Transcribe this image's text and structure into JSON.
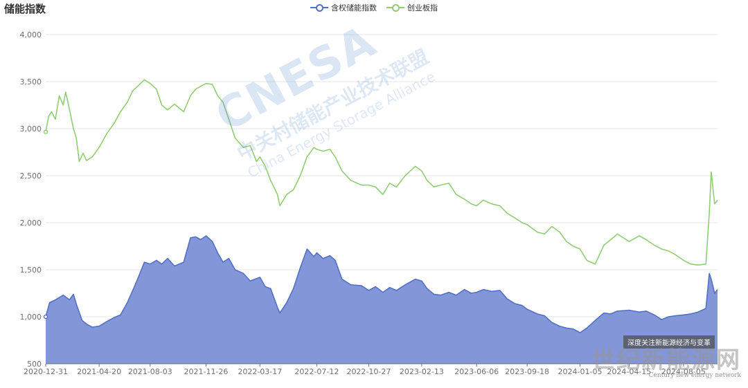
{
  "chart_data": {
    "type": "area",
    "title": "储能指数",
    "xlabel": "",
    "ylabel": "",
    "ylim": [
      500,
      4000
    ],
    "yticks": [
      500,
      1000,
      1500,
      2000,
      2500,
      3000,
      3500,
      4000
    ],
    "ytick_labels": [
      "500",
      "1,000",
      "1,500",
      "2,000",
      "2,500",
      "3,000",
      "3,500",
      "4,000"
    ],
    "xticks": [
      "2020-12-31",
      "2021-04-20",
      "2021-08-03",
      "2021-11-26",
      "2022-03-17",
      "2022-07-12",
      "2022-10-27",
      "2023-02-13",
      "2023-06-06",
      "2023-09-18",
      "2024-01-05",
      "2024-04-15",
      "2024-08-05"
    ],
    "xlim": [
      "2020-12-31",
      "2024-10-14"
    ],
    "grid": true,
    "legend_position": "top-center",
    "series": [
      {
        "name": "含权储能指数",
        "color": "#5470c6",
        "fill": "#7c90d6",
        "style": "area",
        "points": [
          [
            "2020-12-31",
            1000
          ],
          [
            "2021-01-08",
            1150
          ],
          [
            "2021-01-20",
            1180
          ],
          [
            "2021-02-05",
            1230
          ],
          [
            "2021-02-18",
            1180
          ],
          [
            "2021-02-26",
            1240
          ],
          [
            "2021-03-05",
            1120
          ],
          [
            "2021-03-16",
            960
          ],
          [
            "2021-03-26",
            920
          ],
          [
            "2021-04-06",
            890
          ],
          [
            "2021-04-20",
            900
          ],
          [
            "2021-05-06",
            950
          ],
          [
            "2021-05-20",
            990
          ],
          [
            "2021-06-03",
            1020
          ],
          [
            "2021-06-17",
            1150
          ],
          [
            "2021-06-30",
            1300
          ],
          [
            "2021-07-12",
            1450
          ],
          [
            "2021-07-22",
            1580
          ],
          [
            "2021-08-03",
            1560
          ],
          [
            "2021-08-16",
            1600
          ],
          [
            "2021-08-27",
            1560
          ],
          [
            "2021-09-08",
            1620
          ],
          [
            "2021-09-22",
            1540
          ],
          [
            "2021-10-11",
            1580
          ],
          [
            "2021-10-25",
            1840
          ],
          [
            "2021-11-05",
            1850
          ],
          [
            "2021-11-15",
            1820
          ],
          [
            "2021-11-26",
            1860
          ],
          [
            "2021-12-09",
            1800
          ],
          [
            "2021-12-20",
            1680
          ],
          [
            "2021-12-31",
            1580
          ],
          [
            "2022-01-12",
            1620
          ],
          [
            "2022-01-25",
            1500
          ],
          [
            "2022-02-11",
            1460
          ],
          [
            "2022-02-25",
            1380
          ],
          [
            "2022-03-17",
            1420
          ],
          [
            "2022-03-28",
            1320
          ],
          [
            "2022-04-08",
            1300
          ],
          [
            "2022-04-22",
            1100
          ],
          [
            "2022-04-27",
            1040
          ],
          [
            "2022-05-11",
            1150
          ],
          [
            "2022-05-25",
            1300
          ],
          [
            "2022-06-08",
            1520
          ],
          [
            "2022-06-22",
            1720
          ],
          [
            "2022-07-06",
            1640
          ],
          [
            "2022-07-12",
            1680
          ],
          [
            "2022-07-25",
            1620
          ],
          [
            "2022-08-08",
            1650
          ],
          [
            "2022-08-19",
            1600
          ],
          [
            "2022-09-02",
            1400
          ],
          [
            "2022-09-20",
            1340
          ],
          [
            "2022-10-12",
            1330
          ],
          [
            "2022-10-27",
            1280
          ],
          [
            "2022-11-10",
            1320
          ],
          [
            "2022-11-25",
            1260
          ],
          [
            "2022-12-09",
            1310
          ],
          [
            "2022-12-23",
            1280
          ],
          [
            "2023-01-10",
            1340
          ],
          [
            "2023-01-31",
            1400
          ],
          [
            "2023-02-13",
            1380
          ],
          [
            "2023-02-24",
            1300
          ],
          [
            "2023-03-10",
            1240
          ],
          [
            "2023-03-24",
            1230
          ],
          [
            "2023-04-10",
            1260
          ],
          [
            "2023-04-25",
            1230
          ],
          [
            "2023-05-12",
            1290
          ],
          [
            "2023-05-26",
            1250
          ],
          [
            "2023-06-06",
            1260
          ],
          [
            "2023-06-20",
            1290
          ],
          [
            "2023-07-07",
            1270
          ],
          [
            "2023-07-24",
            1280
          ],
          [
            "2023-08-08",
            1190
          ],
          [
            "2023-08-24",
            1140
          ],
          [
            "2023-09-08",
            1120
          ],
          [
            "2023-09-18",
            1080
          ],
          [
            "2023-10-09",
            1030
          ],
          [
            "2023-10-24",
            1010
          ],
          [
            "2023-11-08",
            940
          ],
          [
            "2023-11-24",
            900
          ],
          [
            "2023-12-08",
            880
          ],
          [
            "2023-12-22",
            870
          ],
          [
            "2024-01-05",
            830
          ],
          [
            "2024-01-19",
            880
          ],
          [
            "2024-02-05",
            960
          ],
          [
            "2024-02-23",
            1040
          ],
          [
            "2024-03-08",
            1030
          ],
          [
            "2024-03-22",
            1060
          ],
          [
            "2024-04-15",
            1070
          ],
          [
            "2024-05-06",
            1050
          ],
          [
            "2024-05-20",
            1060
          ],
          [
            "2024-06-06",
            1020
          ],
          [
            "2024-06-21",
            970
          ],
          [
            "2024-07-05",
            1000
          ],
          [
            "2024-07-19",
            1010
          ],
          [
            "2024-08-05",
            1020
          ],
          [
            "2024-08-20",
            1030
          ],
          [
            "2024-09-04",
            1050
          ],
          [
            "2024-09-20",
            1090
          ],
          [
            "2024-09-27",
            1460
          ],
          [
            "2024-10-01",
            1400
          ],
          [
            "2024-10-08",
            1250
          ],
          [
            "2024-10-14",
            1290
          ]
        ]
      },
      {
        "name": "创业板指",
        "color": "#91cc75",
        "style": "line",
        "points": [
          [
            "2020-12-31",
            2966
          ],
          [
            "2021-01-06",
            3130
          ],
          [
            "2021-01-12",
            3180
          ],
          [
            "2021-01-20",
            3100
          ],
          [
            "2021-01-28",
            3350
          ],
          [
            "2021-02-05",
            3250
          ],
          [
            "2021-02-10",
            3390
          ],
          [
            "2021-02-18",
            3200
          ],
          [
            "2021-02-26",
            3000
          ],
          [
            "2021-03-04",
            2900
          ],
          [
            "2021-03-10",
            2650
          ],
          [
            "2021-03-18",
            2740
          ],
          [
            "2021-03-25",
            2660
          ],
          [
            "2021-04-06",
            2700
          ],
          [
            "2021-04-20",
            2800
          ],
          [
            "2021-05-06",
            2950
          ],
          [
            "2021-05-20",
            3050
          ],
          [
            "2021-06-03",
            3180
          ],
          [
            "2021-06-17",
            3280
          ],
          [
            "2021-06-28",
            3400
          ],
          [
            "2021-07-08",
            3450
          ],
          [
            "2021-07-22",
            3520
          ],
          [
            "2021-08-03",
            3480
          ],
          [
            "2021-08-16",
            3420
          ],
          [
            "2021-08-27",
            3250
          ],
          [
            "2021-09-08",
            3200
          ],
          [
            "2021-09-22",
            3260
          ],
          [
            "2021-10-11",
            3180
          ],
          [
            "2021-10-25",
            3350
          ],
          [
            "2021-11-05",
            3420
          ],
          [
            "2021-11-15",
            3450
          ],
          [
            "2021-11-26",
            3480
          ],
          [
            "2021-12-09",
            3470
          ],
          [
            "2021-12-20",
            3350
          ],
          [
            "2021-12-31",
            3280
          ],
          [
            "2022-01-12",
            3100
          ],
          [
            "2022-01-25",
            2900
          ],
          [
            "2022-02-11",
            2800
          ],
          [
            "2022-02-25",
            2820
          ],
          [
            "2022-03-10",
            2650
          ],
          [
            "2022-03-17",
            2700
          ],
          [
            "2022-03-28",
            2600
          ],
          [
            "2022-04-08",
            2450
          ],
          [
            "2022-04-22",
            2300
          ],
          [
            "2022-04-27",
            2180
          ],
          [
            "2022-05-11",
            2300
          ],
          [
            "2022-05-25",
            2350
          ],
          [
            "2022-06-08",
            2500
          ],
          [
            "2022-06-22",
            2700
          ],
          [
            "2022-07-06",
            2800
          ],
          [
            "2022-07-12",
            2780
          ],
          [
            "2022-07-25",
            2760
          ],
          [
            "2022-08-08",
            2780
          ],
          [
            "2022-08-19",
            2700
          ],
          [
            "2022-09-02",
            2550
          ],
          [
            "2022-09-20",
            2450
          ],
          [
            "2022-10-12",
            2400
          ],
          [
            "2022-10-27",
            2400
          ],
          [
            "2022-11-10",
            2380
          ],
          [
            "2022-11-25",
            2300
          ],
          [
            "2022-12-09",
            2420
          ],
          [
            "2022-12-23",
            2380
          ],
          [
            "2023-01-10",
            2500
          ],
          [
            "2023-01-31",
            2600
          ],
          [
            "2023-02-13",
            2550
          ],
          [
            "2023-02-24",
            2450
          ],
          [
            "2023-03-10",
            2380
          ],
          [
            "2023-03-24",
            2400
          ],
          [
            "2023-04-10",
            2420
          ],
          [
            "2023-04-25",
            2300
          ],
          [
            "2023-05-12",
            2250
          ],
          [
            "2023-05-26",
            2200
          ],
          [
            "2023-06-06",
            2180
          ],
          [
            "2023-06-20",
            2240
          ],
          [
            "2023-07-07",
            2200
          ],
          [
            "2023-07-24",
            2180
          ],
          [
            "2023-08-08",
            2100
          ],
          [
            "2023-08-24",
            2050
          ],
          [
            "2023-09-08",
            2000
          ],
          [
            "2023-09-18",
            1980
          ],
          [
            "2023-10-09",
            1900
          ],
          [
            "2023-10-24",
            1880
          ],
          [
            "2023-11-08",
            1960
          ],
          [
            "2023-11-24",
            1900
          ],
          [
            "2023-12-08",
            1800
          ],
          [
            "2023-12-22",
            1750
          ],
          [
            "2024-01-05",
            1720
          ],
          [
            "2024-01-19",
            1600
          ],
          [
            "2024-02-05",
            1560
          ],
          [
            "2024-02-23",
            1760
          ],
          [
            "2024-03-08",
            1820
          ],
          [
            "2024-03-22",
            1880
          ],
          [
            "2024-04-15",
            1800
          ],
          [
            "2024-05-06",
            1860
          ],
          [
            "2024-05-20",
            1820
          ],
          [
            "2024-06-06",
            1760
          ],
          [
            "2024-06-21",
            1720
          ],
          [
            "2024-07-05",
            1700
          ],
          [
            "2024-07-19",
            1660
          ],
          [
            "2024-08-05",
            1600
          ],
          [
            "2024-08-20",
            1560
          ],
          [
            "2024-09-04",
            1550
          ],
          [
            "2024-09-20",
            1560
          ],
          [
            "2024-09-27",
            2100
          ],
          [
            "2024-10-01",
            2540
          ],
          [
            "2024-10-08",
            2200
          ],
          [
            "2024-10-14",
            2240
          ]
        ]
      }
    ]
  },
  "watermark": {
    "brand": "CNESA",
    "cn": "中关村储能产业技术联盟",
    "en": "China Energy Storage Alliance"
  },
  "caption": "深度关注新能源经济与变革",
  "site_logo": {
    "cn": "世纪新能源网",
    "en": "Century new energy network"
  }
}
